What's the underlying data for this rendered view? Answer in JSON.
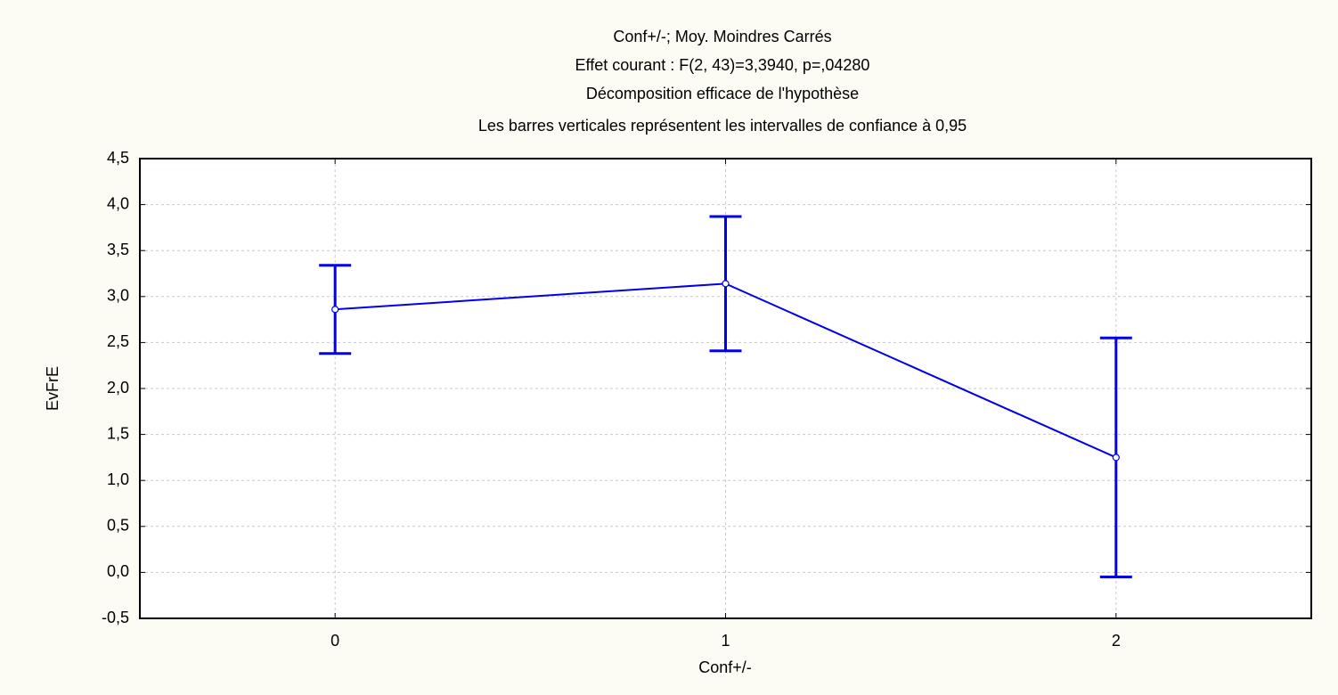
{
  "chart_data": {
    "type": "line",
    "title": "Conf+/-; Moy. Moindres Carrés",
    "subtitles": [
      "Effet courant : F(2, 43)=3,3940, p=,04280",
      "Décomposition efficace de l'hypothèse",
      "Les barres verticales représentent les intervalles de confiance à 0,95"
    ],
    "x_label": "Conf+/-",
    "y_label": "EvFrE",
    "categories": [
      "0",
      "1",
      "2"
    ],
    "series": [
      {
        "name": "EvFrE",
        "color": "#0000ee",
        "values": [
          2.86,
          3.14,
          1.25
        ],
        "errors": [
          0.48,
          0.73,
          1.3
        ]
      }
    ],
    "ylim": [
      -0.5,
      4.5
    ],
    "yticks": [
      {
        "value": -0.5,
        "label": "-0,5"
      },
      {
        "value": 0,
        "label": "0,0"
      },
      {
        "value": 0.5,
        "label": "0,5"
      },
      {
        "value": 1,
        "label": "1,0"
      },
      {
        "value": 1.5,
        "label": "1,5"
      },
      {
        "value": 2,
        "label": "2,0"
      },
      {
        "value": 2.5,
        "label": "2,5"
      },
      {
        "value": 3,
        "label": "3,0"
      },
      {
        "value": 3.5,
        "label": "3,5"
      },
      {
        "value": 4,
        "label": "4,0"
      },
      {
        "value": 4.5,
        "label": "4,5"
      }
    ],
    "grid": true
  }
}
